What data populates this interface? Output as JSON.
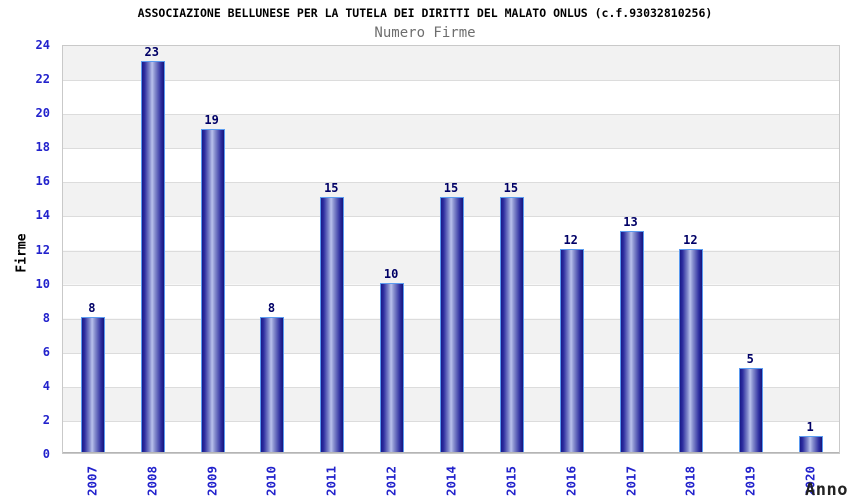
{
  "header": {
    "title": "ASSOCIAZIONE BELLUNESE PER LA TUTELA DEI DIRITTI DEL MALATO ONLUS (c.f.93032810256)",
    "subtitle": "Numero Firme"
  },
  "chart_data": {
    "type": "bar",
    "title": "ASSOCIAZIONE BELLUNESE PER LA TUTELA DEI DIRITTI DEL MALATO ONLUS (c.f.93032810256)",
    "subtitle": "Numero Firme",
    "xlabel": "Anno",
    "ylabel": "Firme",
    "categories": [
      "2007",
      "2008",
      "2009",
      "2010",
      "2011",
      "2012",
      "2014",
      "2015",
      "2016",
      "2017",
      "2018",
      "2019",
      "2020"
    ],
    "values": [
      8,
      23,
      19,
      8,
      15,
      10,
      15,
      15,
      12,
      13,
      12,
      5,
      1
    ],
    "ylim": [
      0,
      24
    ],
    "yticks": [
      0,
      2,
      4,
      6,
      8,
      10,
      12,
      14,
      16,
      18,
      20,
      22,
      24
    ],
    "grid": true,
    "legend": "none",
    "band_pattern": "alternating 2-unit bands, gray at top",
    "colors": {
      "bar_dark": "#191989",
      "bar_light": "#b9c1ec",
      "bar_border": "#5b9bf0",
      "value_label": "#000066",
      "axis_tick_label": "#2222cc",
      "title": "#000000",
      "subtitle": "#6e6e6e",
      "band_gray": "#f2f2f2",
      "gridline": "#dcdcdc",
      "background": "#ffffff"
    }
  }
}
